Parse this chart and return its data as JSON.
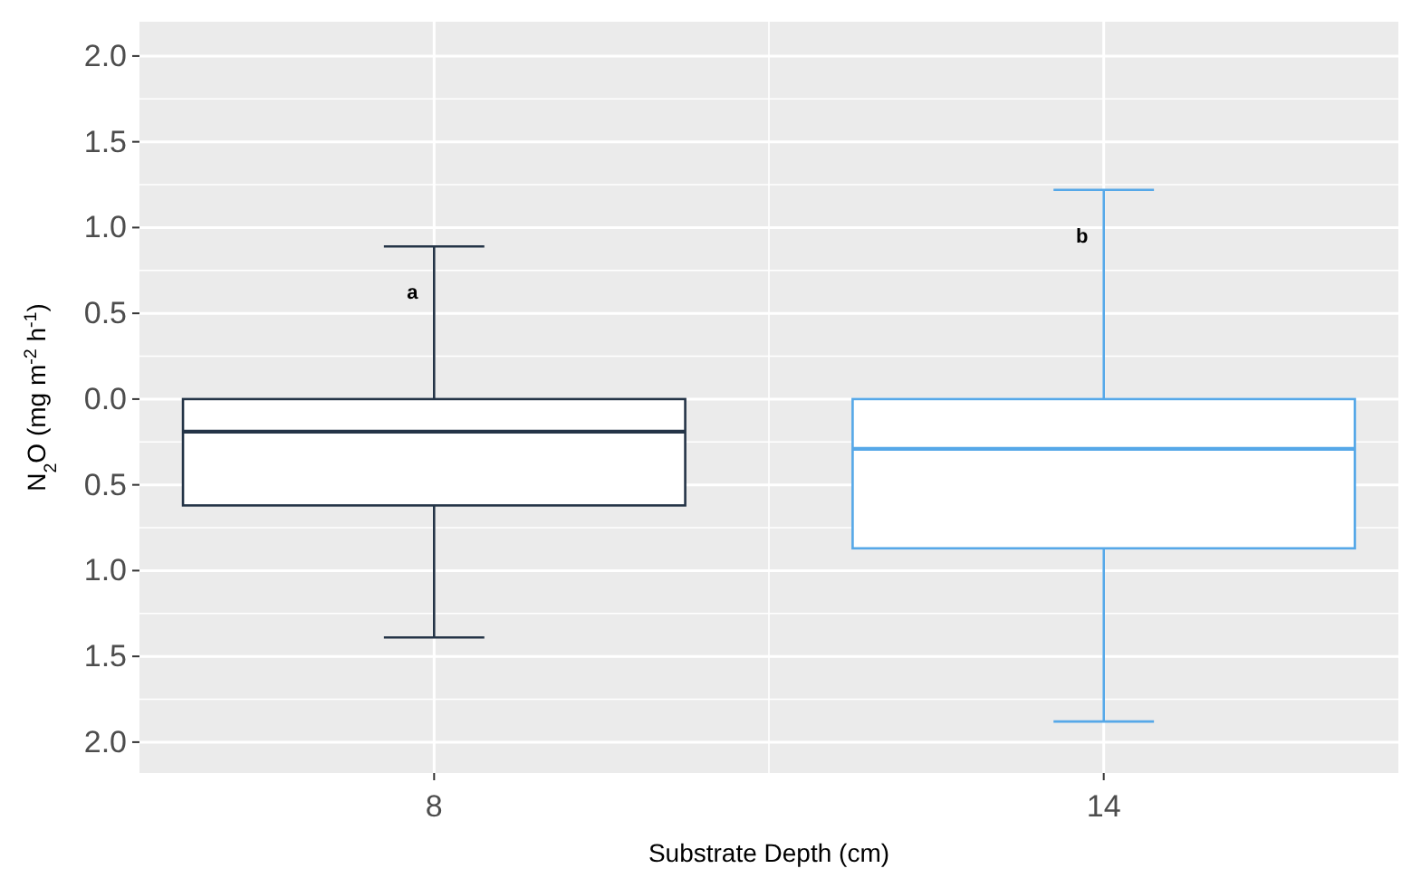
{
  "chart_data": {
    "type": "box",
    "xlabel": "Substrate Depth (cm)",
    "ylabel": "N$_{2}$O (mg m$^{-2}$ h$^{-1}$)",
    "categories": [
      "8",
      "14"
    ],
    "series": [
      {
        "color": "#243447",
        "boxes": [
          {
            "low": -1.39,
            "q1": -0.62,
            "median": -0.19,
            "q3": 0.0,
            "high": 0.89
          },
          null
        ]
      },
      {
        "color": "#56a8e8",
        "boxes": [
          null,
          {
            "low": -1.88,
            "q1": -0.87,
            "median": -0.29,
            "q3": 0.0,
            "high": 1.22
          }
        ]
      }
    ],
    "ylim": [
      -2.18,
      2.2
    ],
    "yticks": [
      {
        "value": -2,
        "label": "2.0"
      },
      {
        "value": -1.5,
        "label": "1.5"
      },
      {
        "value": -1,
        "label": "1.0"
      },
      {
        "value": -0.5,
        "label": "0.5"
      },
      {
        "value": 0,
        "label": "0.0"
      },
      0.5,
      {
        "value": 1,
        "label": "1.0"
      },
      1.5,
      {
        "value": 2,
        "label": "2.0"
      }
    ],
    "grid": true,
    "annotations": [
      "a",
      "b"
    ]
  }
}
